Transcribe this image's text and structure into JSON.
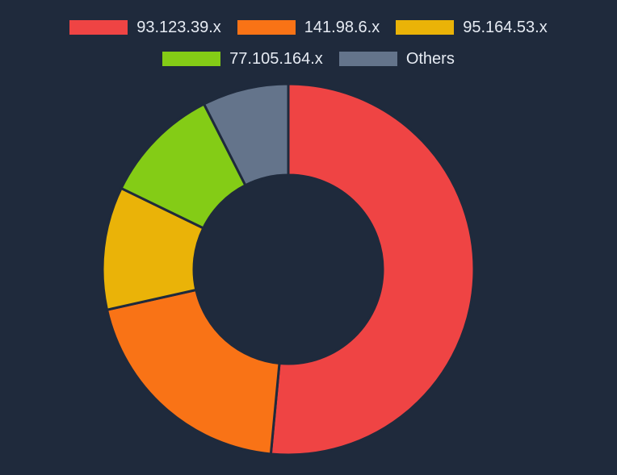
{
  "chart_data": {
    "type": "pie",
    "variant": "donut",
    "title": "",
    "categories": [
      "93.123.39.x",
      "141.98.6.x",
      "95.164.53.x",
      "77.105.164.x",
      "Others"
    ],
    "values": [
      51.5,
      20.0,
      10.7,
      10.3,
      7.5
    ],
    "colors": [
      "#ef4444",
      "#f97316",
      "#eab308",
      "#84cc16",
      "#64748b"
    ],
    "legend_position": "top",
    "background": "#1f2a3c"
  }
}
